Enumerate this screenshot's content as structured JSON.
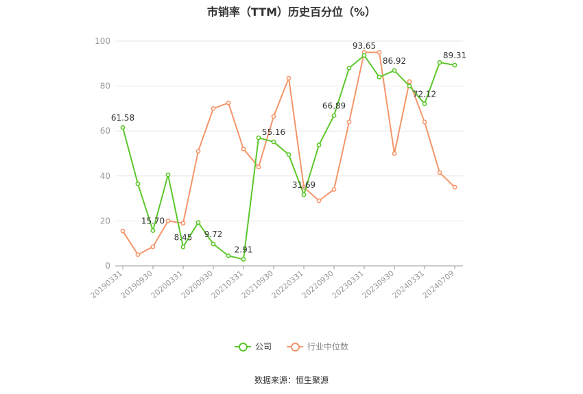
{
  "chart_data": {
    "type": "line",
    "title": "市销率（TTM）历史百分位（%）",
    "ylim": [
      0,
      100
    ],
    "yticks": [
      0,
      20,
      40,
      60,
      80,
      100
    ],
    "x_tick_labels": [
      "20190331",
      "20190930",
      "20200331",
      "20200930",
      "20210331",
      "20210930",
      "20220331",
      "20220930",
      "20230331",
      "20230930",
      "20240331",
      "20240709"
    ],
    "grid": true,
    "legend_position": "bottom",
    "series": [
      {
        "name": "公司",
        "color": "#5cc72a",
        "values": [
          61.58,
          36.5,
          15.7,
          40.5,
          8.45,
          19.3,
          9.72,
          4.5,
          2.91,
          57.0,
          55.16,
          49.5,
          31.69,
          53.8,
          66.89,
          88.0,
          93.65,
          84.0,
          86.92,
          80.0,
          72.12,
          90.5,
          89.31
        ],
        "labels": [
          "61.58",
          "",
          "15.70",
          "",
          "8.45",
          "",
          "9.72",
          "",
          "2.91",
          "",
          "55.16",
          "",
          "31.69",
          "",
          "66.89",
          "",
          "93.65",
          "",
          "86.92",
          "",
          "72.12",
          "",
          "89.31"
        ]
      },
      {
        "name": "行业中位数",
        "color": "#f5956a",
        "values": [
          15.5,
          5.0,
          8.5,
          20.0,
          19.0,
          51.0,
          70.0,
          72.5,
          52.0,
          44.0,
          66.5,
          83.5,
          35.0,
          29.0,
          34.0,
          64.0,
          95.0,
          95.0,
          50.0,
          82.0,
          64.0,
          41.5,
          35.0
        ]
      }
    ]
  },
  "legend": {
    "company": "公司",
    "industry": "行业中位数"
  },
  "source": "数据来源：恒生聚源",
  "colors": {
    "company": "#5cc72a",
    "industry": "#f5956a",
    "grid": "#e6e6e6",
    "axis": "#999999",
    "tick_text": "#999999",
    "label_text": "#333333"
  }
}
